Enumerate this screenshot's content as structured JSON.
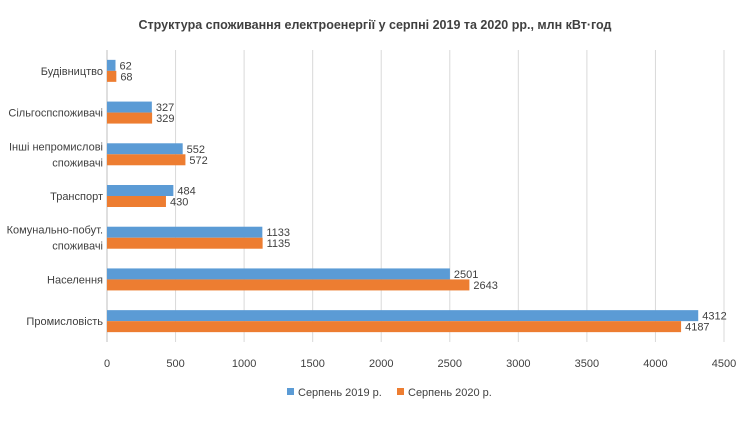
{
  "chart_data": {
    "type": "bar",
    "orientation": "horizontal",
    "title": "Структура споживання електроенергії у серпні 2019 та 2020 рр., млн кВт·год",
    "categories": [
      [
        "Будівництво"
      ],
      [
        "Сільгоспспоживачі"
      ],
      [
        "Інші непромислові",
        "споживачі"
      ],
      [
        "Транспорт"
      ],
      [
        "Комунально-побут.",
        "споживачі"
      ],
      [
        "Населення"
      ],
      [
        "Промисловість"
      ]
    ],
    "series": [
      {
        "name": "Серпень 2019 р.",
        "color": "#5b9bd5",
        "values": [
          62,
          327,
          552,
          484,
          1133,
          2501,
          4312
        ]
      },
      {
        "name": "Серпень 2020 р.",
        "color": "#ed7d31",
        "values": [
          68,
          329,
          572,
          430,
          1135,
          2643,
          4187
        ]
      }
    ],
    "xlim": [
      0,
      4500
    ],
    "xticks": [
      0,
      500,
      1000,
      1500,
      2000,
      2500,
      3000,
      3500,
      4000,
      4500
    ],
    "grid": true,
    "legend_position": "bottom",
    "data_labels": true
  }
}
